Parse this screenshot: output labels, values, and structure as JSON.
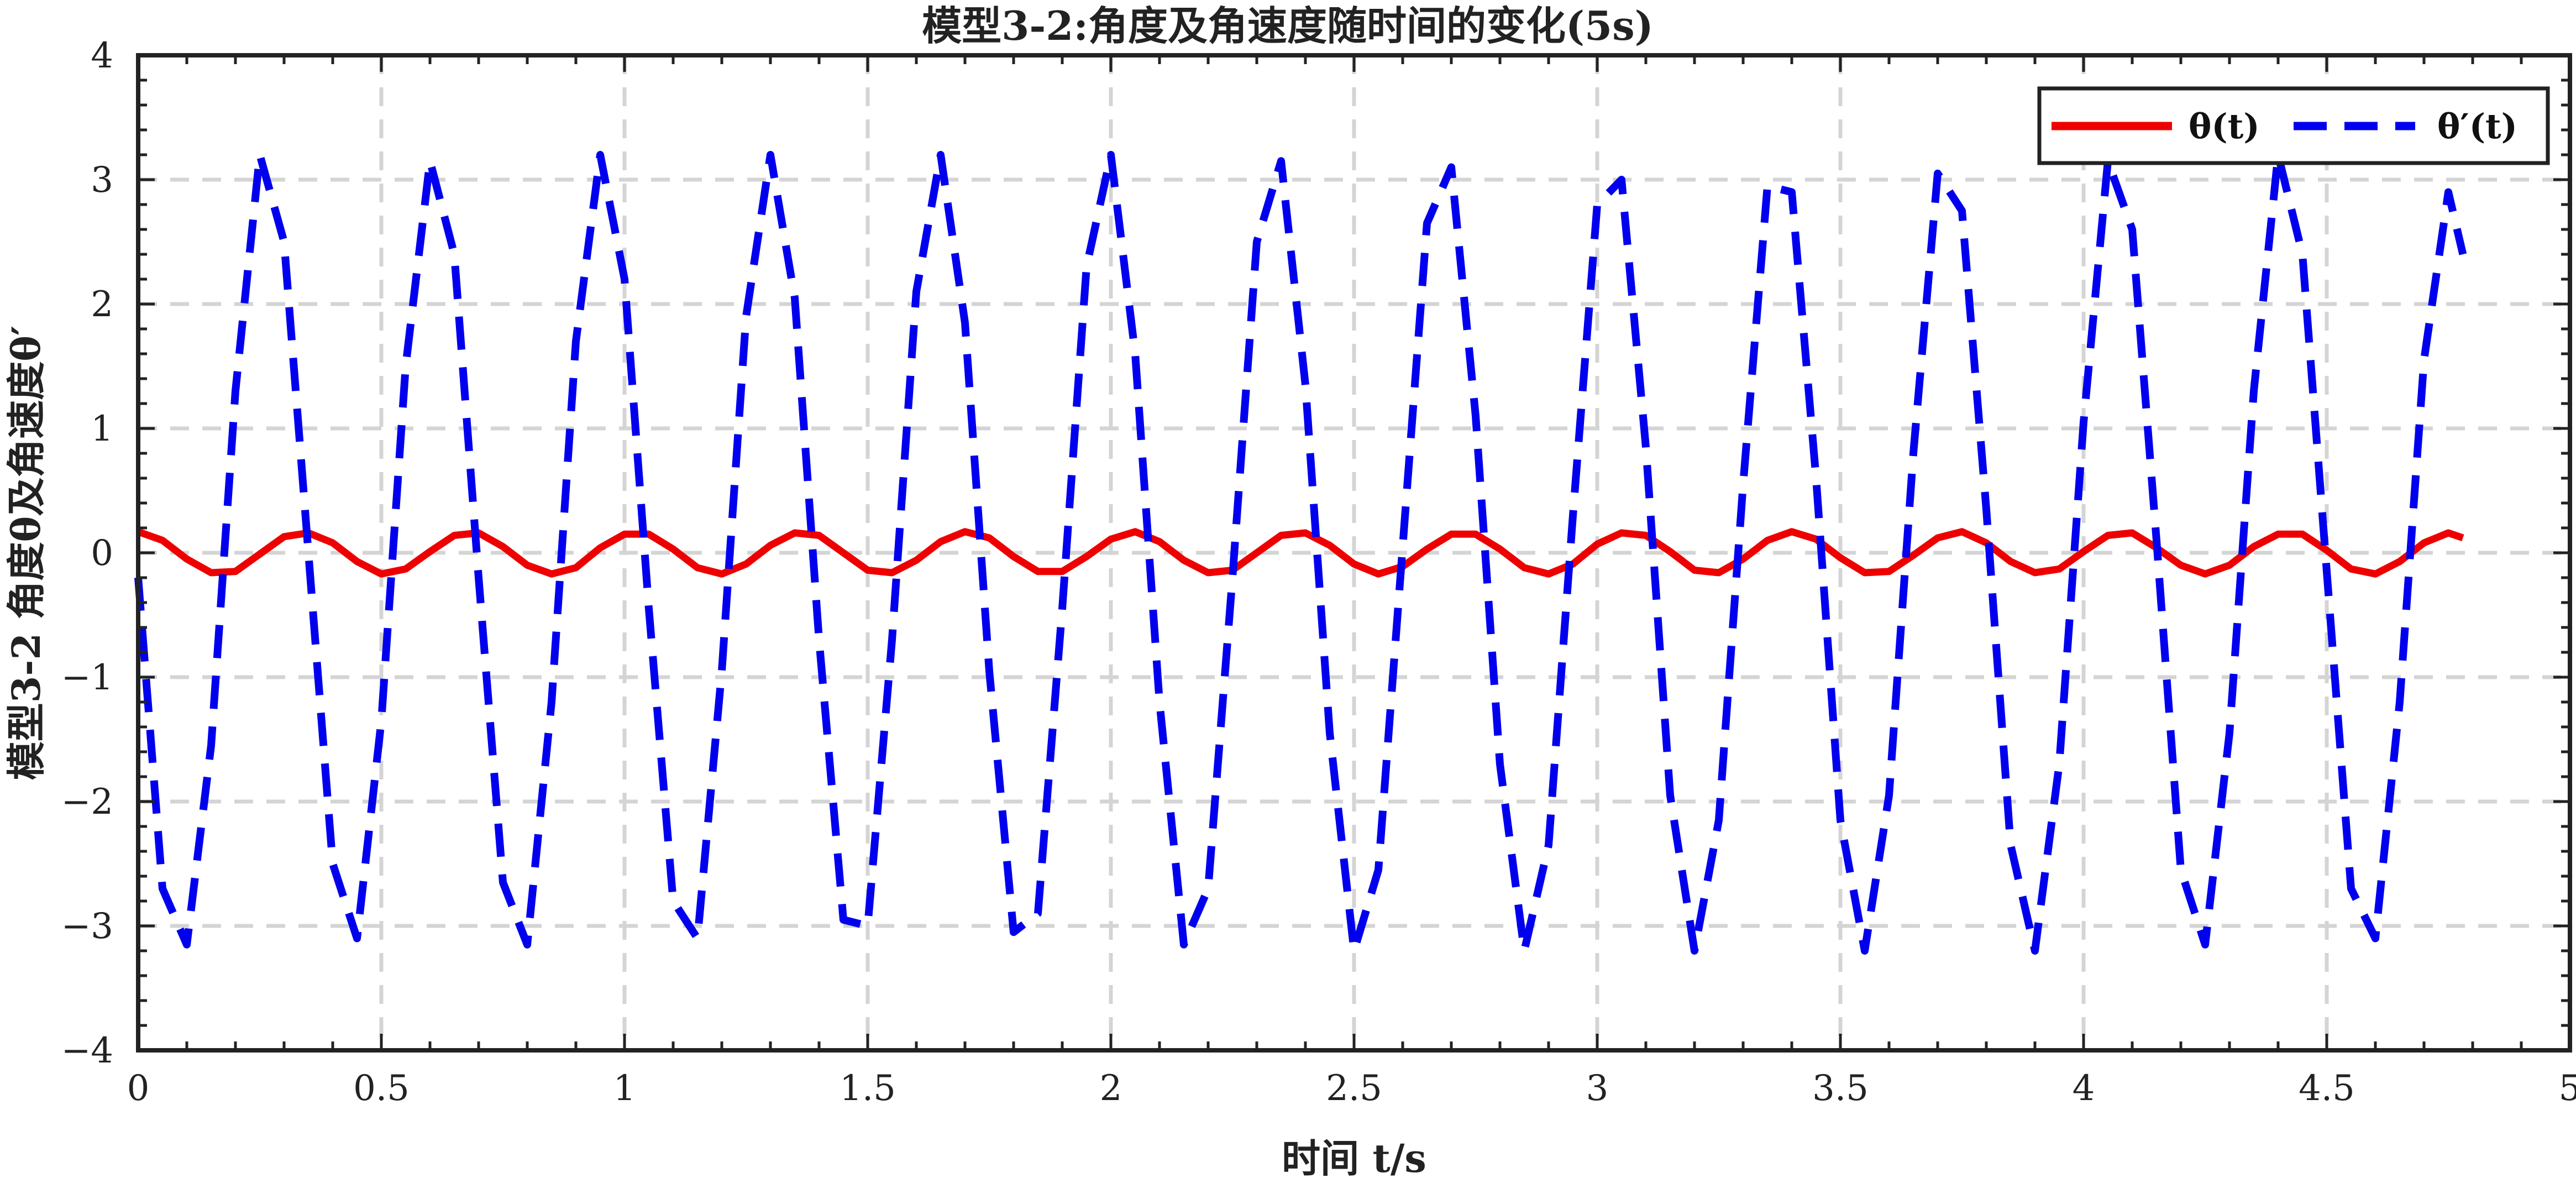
{
  "chart_data": {
    "type": "line",
    "title": "模型3-2:角度及角速度随时间的变化(5s)",
    "xlabel": "时间 t/s",
    "ylabel": "模型3-2 角度θ及角速度θ′",
    "xlim": [
      0,
      5
    ],
    "ylim": [
      -4,
      4
    ],
    "xticks": [
      0,
      0.5,
      1,
      1.5,
      2,
      2.5,
      3,
      3.5,
      4,
      4.5,
      5
    ],
    "xtick_labels": [
      "0",
      "0.5",
      "1",
      "1.5",
      "2",
      "2.5",
      "3",
      "3.5",
      "4",
      "4.5",
      "5"
    ],
    "yticks": [
      -4,
      -3,
      -2,
      -1,
      0,
      1,
      2,
      3,
      4
    ],
    "ytick_labels": [
      "−4",
      "−3",
      "−2",
      "−1",
      "0",
      "1",
      "2",
      "3",
      "4"
    ],
    "grid": true,
    "legend_position": "top-right",
    "series": [
      {
        "name": "θ(t)",
        "color": "#ee0000",
        "style": "solid",
        "x": [
          0,
          0.05,
          0.1,
          0.15,
          0.2,
          0.25,
          0.3,
          0.35,
          0.4,
          0.45,
          0.5,
          0.55,
          0.6,
          0.65,
          0.7,
          0.75,
          0.8,
          0.85,
          0.9,
          0.95,
          1,
          1.05,
          1.1,
          1.15,
          1.2,
          1.25,
          1.3,
          1.35,
          1.4,
          1.45,
          1.5,
          1.55,
          1.6,
          1.65,
          1.7,
          1.75,
          1.8,
          1.85,
          1.9,
          1.95,
          2,
          2.05,
          2.1,
          2.15,
          2.2,
          2.25,
          2.3,
          2.35,
          2.4,
          2.45,
          2.5,
          2.55,
          2.6,
          2.65,
          2.7,
          2.75,
          2.8,
          2.85,
          2.9,
          2.95,
          3,
          3.05,
          3.1,
          3.15,
          3.2,
          3.25,
          3.3,
          3.35,
          3.4,
          3.45,
          3.5,
          3.55,
          3.6,
          3.65,
          3.7,
          3.75,
          3.8,
          3.85,
          3.9,
          3.95,
          4,
          4.05,
          4.1,
          4.15,
          4.2,
          4.25,
          4.3,
          4.35,
          4.4,
          4.45,
          4.5,
          4.55,
          4.6,
          4.65,
          4.7,
          4.75,
          4.78
        ],
        "y": [
          0.17,
          0.1,
          -0.05,
          -0.16,
          -0.15,
          -0.01,
          0.13,
          0.16,
          0.08,
          -0.07,
          -0.17,
          -0.13,
          0.01,
          0.14,
          0.16,
          0.05,
          -0.1,
          -0.17,
          -0.12,
          0.04,
          0.15,
          0.15,
          0.03,
          -0.12,
          -0.17,
          -0.09,
          0.06,
          0.16,
          0.14,
          0,
          -0.14,
          -0.16,
          -0.06,
          0.09,
          0.17,
          0.12,
          -0.03,
          -0.15,
          -0.15,
          -0.03,
          0.11,
          0.17,
          0.09,
          -0.06,
          -0.16,
          -0.14,
          0,
          0.14,
          0.16,
          0.06,
          -0.09,
          -0.17,
          -0.11,
          0.03,
          0.15,
          0.15,
          0.03,
          -0.12,
          -0.17,
          -0.09,
          0.07,
          0.16,
          0.14,
          0.01,
          -0.14,
          -0.16,
          -0.05,
          0.1,
          0.17,
          0.11,
          -0.04,
          -0.16,
          -0.15,
          -0.02,
          0.12,
          0.17,
          0.08,
          -0.07,
          -0.16,
          -0.13,
          0.01,
          0.14,
          0.16,
          0.04,
          -0.1,
          -0.17,
          -0.1,
          0.05,
          0.15,
          0.15,
          0.02,
          -0.13,
          -0.17,
          -0.07,
          0.08,
          0.16,
          0.12
        ]
      },
      {
        "name": "θ′(t)",
        "color": "#0000ee",
        "style": "dashed",
        "x": [
          0,
          0.05,
          0.1,
          0.15,
          0.2,
          0.25,
          0.3,
          0.35,
          0.4,
          0.45,
          0.5,
          0.55,
          0.6,
          0.65,
          0.7,
          0.75,
          0.8,
          0.85,
          0.9,
          0.95,
          1,
          1.05,
          1.1,
          1.15,
          1.2,
          1.25,
          1.3,
          1.35,
          1.4,
          1.45,
          1.5,
          1.55,
          1.6,
          1.65,
          1.7,
          1.75,
          1.8,
          1.85,
          1.9,
          1.95,
          2,
          2.05,
          2.1,
          2.15,
          2.2,
          2.25,
          2.3,
          2.35,
          2.4,
          2.45,
          2.5,
          2.55,
          2.6,
          2.65,
          2.7,
          2.75,
          2.8,
          2.85,
          2.9,
          2.95,
          3,
          3.05,
          3.1,
          3.15,
          3.2,
          3.25,
          3.3,
          3.35,
          3.4,
          3.45,
          3.5,
          3.55,
          3.6,
          3.65,
          3.7,
          3.75,
          3.8,
          3.85,
          3.9,
          3.95,
          4,
          4.05,
          4.1,
          4.15,
          4.2,
          4.25,
          4.3,
          4.35,
          4.4,
          4.45,
          4.5,
          4.55,
          4.6,
          4.65,
          4.7,
          4.75,
          4.78
        ],
        "y": [
          -0.2,
          -2.7,
          -3.15,
          -1.55,
          1.3,
          3.2,
          2.5,
          0,
          -2.5,
          -3.1,
          -1.35,
          1.5,
          3.15,
          2.4,
          -0.2,
          -2.65,
          -3.15,
          -1.2,
          1.7,
          3.2,
          2.2,
          -0.45,
          -2.8,
          -3.1,
          -0.95,
          1.9,
          3.2,
          2.05,
          -0.7,
          -2.95,
          -3.0,
          -0.7,
          2.1,
          3.2,
          1.85,
          -0.95,
          -3.05,
          -2.9,
          -0.45,
          2.3,
          3.2,
          1.6,
          -1.2,
          -3.15,
          -2.7,
          -0.2,
          2.5,
          3.15,
          1.35,
          -1.45,
          -3.2,
          -2.55,
          0.05,
          2.65,
          3.1,
          1.1,
          -1.7,
          -3.2,
          -2.35,
          0.3,
          2.8,
          3.0,
          0.85,
          -1.95,
          -3.2,
          -2.15,
          0.55,
          2.95,
          2.9,
          0.6,
          -2.15,
          -3.2,
          -1.95,
          0.8,
          3.05,
          2.75,
          0.35,
          -2.35,
          -3.2,
          -1.7,
          1.05,
          3.15,
          2.6,
          0.1,
          -2.55,
          -3.15,
          -1.45,
          1.3,
          3.2,
          2.4,
          -0.15,
          -2.7,
          -3.1,
          -1.2,
          1.55,
          2.9,
          2.4
        ]
      }
    ]
  }
}
